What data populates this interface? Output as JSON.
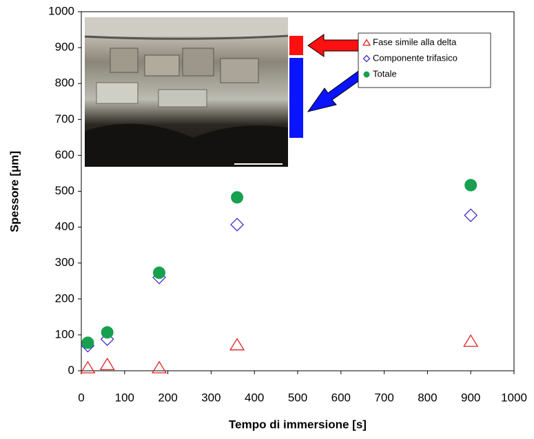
{
  "chart_data": {
    "type": "scatter",
    "x_label": "Tempo di immersione [s]",
    "y_label": "Spessore [μm]",
    "xlim": [
      0,
      1000
    ],
    "xticks": [
      0,
      100,
      200,
      300,
      400,
      500,
      600,
      700,
      800,
      900,
      1000
    ],
    "ylim": [
      0,
      1000
    ],
    "yticks": [
      0,
      100,
      200,
      300,
      400,
      500,
      600,
      700,
      800,
      900,
      1000
    ],
    "grid": false,
    "series": [
      {
        "name": "Fase simile alla delta",
        "color": "#e02020",
        "marker": "triangle",
        "x": [
          15,
          60,
          180,
          360,
          900
        ],
        "values": [
          8,
          17,
          8,
          72,
          82
        ]
      },
      {
        "name": "Componente trifasico",
        "color": "#3a2ccc",
        "marker": "diamond",
        "x": [
          15,
          60,
          180,
          360,
          900
        ],
        "values": [
          70,
          88,
          260,
          407,
          433
        ]
      },
      {
        "name": "Totale",
        "color": "#17a050",
        "marker": "circle",
        "x": [
          15,
          60,
          180,
          360,
          900
        ],
        "values": [
          78,
          107,
          273,
          483,
          517
        ]
      }
    ]
  }
}
